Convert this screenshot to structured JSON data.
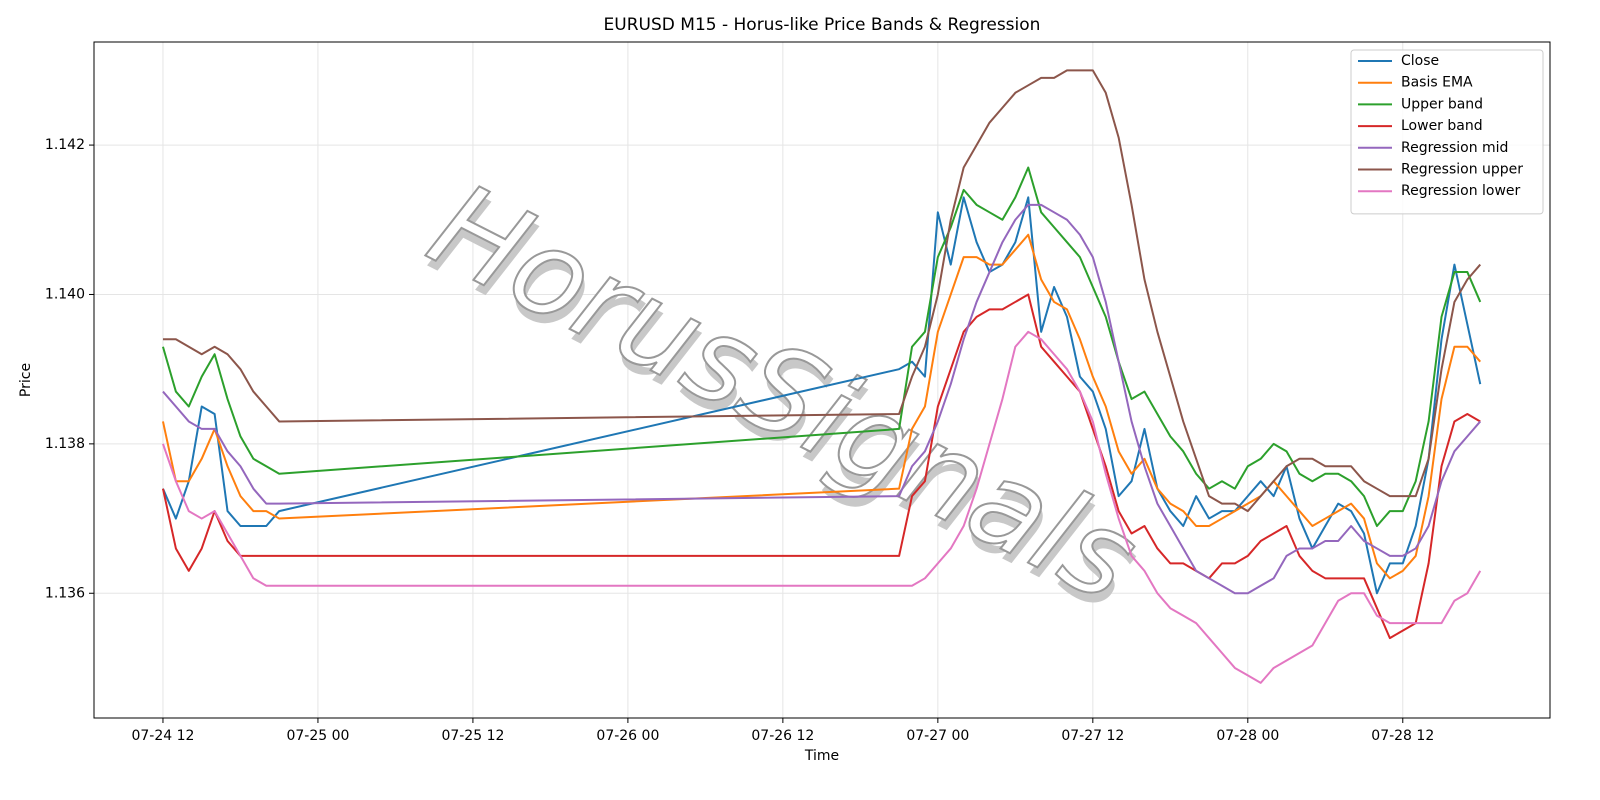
{
  "chart_data": {
    "type": "line",
    "title": "EURUSD M15 - Horus-like Price Bands & Regression",
    "xlabel": "Time",
    "ylabel": "Price",
    "watermark": "HorusSignals",
    "x": [
      12,
      13,
      14,
      15,
      16,
      17,
      18,
      19,
      20,
      21,
      69,
      70,
      71,
      72,
      73,
      74,
      75,
      76,
      77,
      78,
      79,
      80,
      81,
      82,
      83,
      84,
      85,
      86,
      87,
      88,
      89,
      90,
      91,
      92,
      93,
      94,
      95,
      96,
      97,
      98,
      99,
      100,
      101,
      102,
      103,
      104,
      105,
      106,
      107,
      108,
      109,
      110,
      111,
      112,
      113,
      114
    ],
    "xlim": [
      6.66,
      119.4
    ],
    "xticks": [
      {
        "value": 12,
        "label": "07-24 12"
      },
      {
        "value": 24,
        "label": "07-25 00"
      },
      {
        "value": 36,
        "label": "07-25 12"
      },
      {
        "value": 48,
        "label": "07-26 00"
      },
      {
        "value": 60,
        "label": "07-26 12"
      },
      {
        "value": 72,
        "label": "07-27 00"
      },
      {
        "value": 84,
        "label": "07-27 12"
      },
      {
        "value": 96,
        "label": "07-28 00"
      },
      {
        "value": 108,
        "label": "07-28 12"
      }
    ],
    "ylim": [
      1.13433,
      1.14338
    ],
    "yticks": [
      1.136,
      1.138,
      {
        "value": 1.14,
        "label": "1.140"
      },
      1.142
    ],
    "grid": true,
    "legend": "upper right",
    "series": [
      {
        "name": "Close",
        "color": "#1f77b4",
        "values": [
          1.1374,
          1.137,
          1.1375,
          1.1385,
          1.1384,
          1.1371,
          1.1369,
          1.1369,
          1.1369,
          1.1371,
          1.139,
          1.1391,
          1.1389,
          1.1411,
          1.1404,
          1.1413,
          1.1407,
          1.1403,
          1.1404,
          1.1407,
          1.1413,
          1.1395,
          1.1401,
          1.1397,
          1.1389,
          1.1387,
          1.1382,
          1.1373,
          1.1375,
          1.1382,
          1.1374,
          1.1371,
          1.1369,
          1.1373,
          1.137,
          1.1371,
          1.1371,
          1.1373,
          1.1375,
          1.1373,
          1.1377,
          1.137,
          1.1366,
          1.1369,
          1.1372,
          1.1371,
          1.1368,
          1.136,
          1.1364,
          1.1364,
          1.1369,
          1.1378,
          1.1394,
          1.1404,
          1.1396,
          1.1388
        ]
      },
      {
        "name": "Basis EMA",
        "color": "#ff7f0e",
        "values": [
          1.1383,
          1.1375,
          1.1375,
          1.1378,
          1.1382,
          1.1377,
          1.1373,
          1.1371,
          1.1371,
          1.137,
          1.1374,
          1.1382,
          1.1385,
          1.1395,
          1.14,
          1.1405,
          1.1405,
          1.1404,
          1.1404,
          1.1406,
          1.1408,
          1.1402,
          1.1399,
          1.1398,
          1.1394,
          1.1389,
          1.1385,
          1.1379,
          1.1376,
          1.1378,
          1.1374,
          1.1372,
          1.1371,
          1.1369,
          1.1369,
          1.137,
          1.1371,
          1.1372,
          1.1373,
          1.1375,
          1.1373,
          1.1371,
          1.1369,
          1.137,
          1.1371,
          1.1372,
          1.137,
          1.1364,
          1.1362,
          1.1363,
          1.1365,
          1.1373,
          1.1386,
          1.1393,
          1.1393,
          1.1391
        ]
      },
      {
        "name": "Upper band",
        "color": "#2ca02c",
        "values": [
          1.1393,
          1.1387,
          1.1385,
          1.1389,
          1.1392,
          1.1386,
          1.1381,
          1.1378,
          1.1377,
          1.1376,
          1.1382,
          1.1393,
          1.1395,
          1.1405,
          1.1409,
          1.1414,
          1.1412,
          1.1411,
          1.141,
          1.1413,
          1.1417,
          1.1411,
          1.1409,
          1.1407,
          1.1405,
          1.1401,
          1.1397,
          1.1391,
          1.1386,
          1.1387,
          1.1384,
          1.1381,
          1.1379,
          1.1376,
          1.1374,
          1.1375,
          1.1374,
          1.1377,
          1.1378,
          1.138,
          1.1379,
          1.1376,
          1.1375,
          1.1376,
          1.1376,
          1.1375,
          1.1373,
          1.1369,
          1.1371,
          1.1371,
          1.1375,
          1.1383,
          1.1397,
          1.1403,
          1.1403,
          1.1399
        ]
      },
      {
        "name": "Lower band",
        "color": "#d62728",
        "values": [
          1.1374,
          1.1366,
          1.1363,
          1.1366,
          1.1371,
          1.1367,
          1.1365,
          1.1365,
          1.1365,
          1.1365,
          1.1365,
          1.1373,
          1.1375,
          1.1385,
          1.139,
          1.1395,
          1.1397,
          1.1398,
          1.1398,
          1.1399,
          1.14,
          1.1393,
          1.1391,
          1.1389,
          1.1387,
          1.1382,
          1.1377,
          1.1371,
          1.1368,
          1.1369,
          1.1366,
          1.1364,
          1.1364,
          1.1363,
          1.1362,
          1.1364,
          1.1364,
          1.1365,
          1.1367,
          1.1368,
          1.1369,
          1.1365,
          1.1363,
          1.1362,
          1.1362,
          1.1362,
          1.1362,
          1.1358,
          1.1354,
          1.1355,
          1.1356,
          1.1364,
          1.1377,
          1.1383,
          1.1384,
          1.1383
        ]
      },
      {
        "name": "Regression mid",
        "color": "#9467bd",
        "values": [
          1.1387,
          1.1385,
          1.1383,
          1.1382,
          1.1382,
          1.1379,
          1.1377,
          1.1374,
          1.1372,
          1.1372,
          1.1373,
          1.1377,
          1.1379,
          1.1383,
          1.1388,
          1.1394,
          1.1399,
          1.1403,
          1.1407,
          1.141,
          1.1412,
          1.1412,
          1.1411,
          1.141,
          1.1408,
          1.1405,
          1.1399,
          1.1391,
          1.1383,
          1.1377,
          1.1372,
          1.1369,
          1.1366,
          1.1363,
          1.1362,
          1.1361,
          1.136,
          1.136,
          1.1361,
          1.1362,
          1.1365,
          1.1366,
          1.1366,
          1.1367,
          1.1367,
          1.1369,
          1.1367,
          1.1366,
          1.1365,
          1.1365,
          1.1366,
          1.1369,
          1.1375,
          1.1379,
          1.1381,
          1.1383
        ]
      },
      {
        "name": "Regression upper",
        "color": "#8c564b",
        "values": [
          1.1394,
          1.1394,
          1.1393,
          1.1392,
          1.1393,
          1.1392,
          1.139,
          1.1387,
          1.1385,
          1.1383,
          1.1384,
          1.1389,
          1.1393,
          1.14,
          1.141,
          1.1417,
          1.142,
          1.1423,
          1.1425,
          1.1427,
          1.1428,
          1.1429,
          1.1429,
          1.143,
          1.143,
          1.143,
          1.1427,
          1.1421,
          1.1412,
          1.1402,
          1.1395,
          1.1389,
          1.1383,
          1.1378,
          1.1373,
          1.1372,
          1.1372,
          1.1371,
          1.1373,
          1.1375,
          1.1377,
          1.1378,
          1.1378,
          1.1377,
          1.1377,
          1.1377,
          1.1375,
          1.1374,
          1.1373,
          1.1373,
          1.1373,
          1.1378,
          1.139,
          1.1399,
          1.1402,
          1.1404
        ]
      },
      {
        "name": "Regression lower",
        "color": "#e377c2",
        "values": [
          1.138,
          1.1375,
          1.1371,
          1.137,
          1.1371,
          1.1368,
          1.1365,
          1.1362,
          1.1361,
          1.1361,
          1.1361,
          1.1361,
          1.1362,
          1.1364,
          1.1366,
          1.1369,
          1.1374,
          1.138,
          1.1386,
          1.1393,
          1.1395,
          1.1394,
          1.1392,
          1.139,
          1.1387,
          1.1383,
          1.1376,
          1.137,
          1.1365,
          1.1363,
          1.136,
          1.1358,
          1.1357,
          1.1356,
          1.1354,
          1.1352,
          1.135,
          1.1349,
          1.1348,
          1.135,
          1.1351,
          1.1352,
          1.1353,
          1.1356,
          1.1359,
          1.136,
          1.136,
          1.1357,
          1.1356,
          1.1356,
          1.1356,
          1.1356,
          1.1356,
          1.1359,
          1.136,
          1.1363
        ]
      }
    ]
  }
}
